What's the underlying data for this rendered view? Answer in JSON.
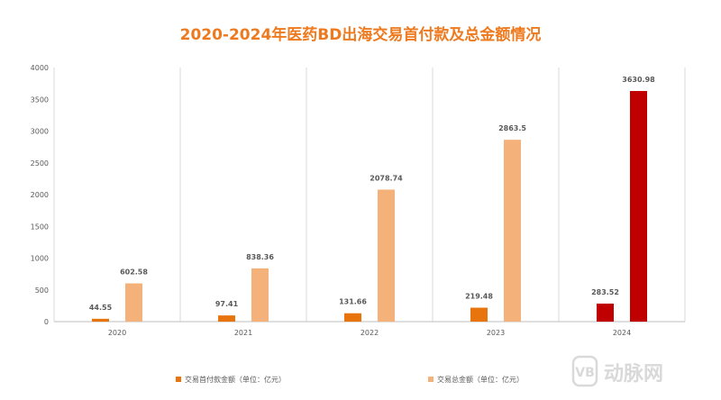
{
  "chart_data": {
    "type": "bar",
    "title": "2020-2024年医药BD出海交易首付款及总金额情况",
    "categories": [
      "2020",
      "2021",
      "2022",
      "2023",
      "2024"
    ],
    "series": [
      {
        "name": "交易首付款金额（单位：亿元）",
        "values": [
          44.55,
          97.41,
          131.66,
          219.48,
          283.52
        ],
        "color": "#e8740e"
      },
      {
        "name": "交易总金额（单位：亿元）",
        "values": [
          602.58,
          838.36,
          2078.74,
          2863.5,
          3630.98
        ],
        "color": "#f4b27a"
      }
    ],
    "highlight": {
      "category_index": 4,
      "colors": [
        "#c00000",
        "#c00000"
      ]
    },
    "ylim": [
      0,
      4000
    ],
    "yticks": [
      0,
      500,
      1000,
      1500,
      2000,
      2500,
      3000,
      3500,
      4000
    ],
    "data_labels": [
      [
        "44.55",
        "97.41",
        "131.66",
        "219.48",
        "283.52"
      ],
      [
        "602.58",
        "838.36",
        "2078.74",
        "2863.5",
        "3630.98"
      ]
    ],
    "grid": "vertical category separators",
    "legend": "bottom"
  },
  "watermark": {
    "text": "动脉网",
    "logo_text": "VB",
    "color": "#d9d9d9"
  }
}
